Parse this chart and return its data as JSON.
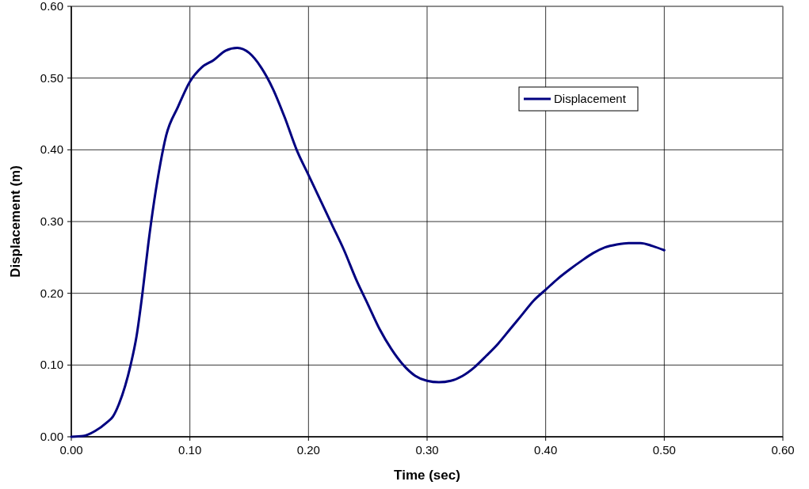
{
  "chart_data": {
    "type": "line",
    "xlabel": "Time (sec)",
    "ylabel": "Displacement (m)",
    "xlim": [
      0,
      0.6
    ],
    "xticks": [
      {
        "value": 0,
        "label": "0.00"
      },
      {
        "value": 0.1,
        "label": "0.10"
      },
      {
        "value": 0.2,
        "label": "0.20"
      },
      {
        "value": 0.3,
        "label": "0.30"
      },
      {
        "value": 0.4,
        "label": "0.40"
      },
      {
        "value": 0.5,
        "label": "0.50"
      },
      {
        "value": 0.6,
        "label": "0.60"
      }
    ],
    "ylim": [
      0,
      0.6
    ],
    "yticks": [
      {
        "value": 0,
        "label": "0.00"
      },
      {
        "value": 0.1,
        "label": "0.10"
      },
      {
        "value": 0.2,
        "label": "0.20"
      },
      {
        "value": 0.3,
        "label": "0.30"
      },
      {
        "value": 0.4,
        "label": "0.40"
      },
      {
        "value": 0.5,
        "label": "0.50"
      },
      {
        "value": 0.6,
        "label": "0.60"
      }
    ],
    "grid": true,
    "legend": "top right",
    "marker": "none",
    "line_style": "solid",
    "series": [
      {
        "name": "Displacement",
        "color": "#000080",
        "x": [
          0,
          0.01,
          0.02,
          0.03,
          0.035,
          0.04,
          0.05,
          0.055,
          0.06,
          0.065,
          0.07,
          0.075,
          0.08,
          0.09,
          0.1,
          0.11,
          0.12,
          0.13,
          0.14,
          0.15,
          0.16,
          0.17,
          0.18,
          0.19,
          0.2,
          0.21,
          0.22,
          0.23,
          0.24,
          0.25,
          0.26,
          0.27,
          0.28,
          0.29,
          0.3,
          0.31,
          0.32,
          0.33,
          0.34,
          0.35,
          0.36,
          0.37,
          0.38,
          0.39,
          0.4,
          0.41,
          0.42,
          0.43,
          0.44,
          0.45,
          0.46,
          0.47,
          0.48,
          0.49,
          0.5
        ],
        "values": [
          0,
          0.001,
          0.008,
          0.02,
          0.028,
          0.045,
          0.1,
          0.14,
          0.2,
          0.27,
          0.33,
          0.38,
          0.42,
          0.46,
          0.495,
          0.515,
          0.525,
          0.538,
          0.542,
          0.535,
          0.515,
          0.485,
          0.445,
          0.4,
          0.365,
          0.33,
          0.295,
          0.26,
          0.22,
          0.185,
          0.15,
          0.122,
          0.1,
          0.085,
          0.078,
          0.076,
          0.078,
          0.085,
          0.097,
          0.113,
          0.13,
          0.15,
          0.17,
          0.19,
          0.205,
          0.22,
          0.233,
          0.245,
          0.256,
          0.264,
          0.268,
          0.27,
          0.27,
          0.266,
          0.26
        ]
      }
    ]
  }
}
